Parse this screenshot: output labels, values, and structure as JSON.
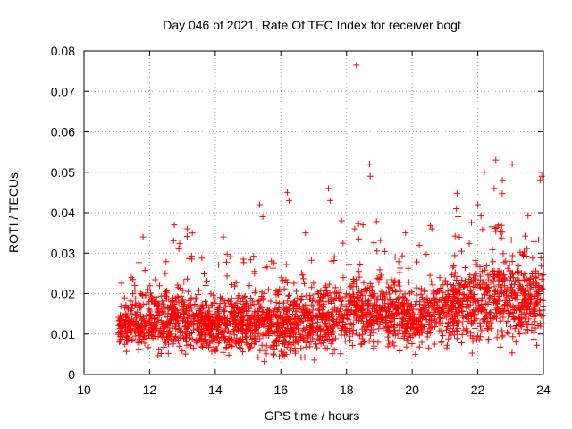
{
  "chart_data": {
    "type": "scatter",
    "title": "Day 046 of 2021, Rate Of TEC Index for receiver bogt",
    "xlabel": "GPS time / hours",
    "ylabel": "ROTI / TECUs",
    "xlim": [
      10,
      24
    ],
    "ylim": [
      0,
      0.08
    ],
    "grid": true,
    "x_ticks": [
      10,
      12,
      14,
      16,
      18,
      20,
      22,
      24
    ],
    "y_ticks": [
      0,
      0.01,
      0.02,
      0.03,
      0.04,
      0.05,
      0.06,
      0.07,
      0.08
    ],
    "x_tick_labels": [
      "10",
      "12",
      "14",
      "16",
      "18",
      "20",
      "22",
      "24"
    ],
    "y_tick_labels": [
      "0",
      "0.01",
      "0.02",
      "0.03",
      "0.04",
      "0.05",
      "0.06",
      "0.07",
      "0.08"
    ],
    "marker": "+",
    "marker_color": "#ff0000",
    "data_x_range": [
      11.05,
      24.0
    ],
    "noise_seed": 46,
    "points_per_hour": 220,
    "envelope": [
      {
        "x": 11.0,
        "base": 0.012,
        "spread": 0.008
      },
      {
        "x": 12.0,
        "base": 0.013,
        "spread": 0.011
      },
      {
        "x": 13.0,
        "base": 0.014,
        "spread": 0.012
      },
      {
        "x": 14.0,
        "base": 0.012,
        "spread": 0.009
      },
      {
        "x": 15.0,
        "base": 0.013,
        "spread": 0.01
      },
      {
        "x": 16.0,
        "base": 0.012,
        "spread": 0.01
      },
      {
        "x": 17.0,
        "base": 0.013,
        "spread": 0.011
      },
      {
        "x": 18.0,
        "base": 0.015,
        "spread": 0.011
      },
      {
        "x": 19.0,
        "base": 0.016,
        "spread": 0.011
      },
      {
        "x": 20.0,
        "base": 0.014,
        "spread": 0.01
      },
      {
        "x": 21.0,
        "base": 0.016,
        "spread": 0.012
      },
      {
        "x": 22.0,
        "base": 0.018,
        "spread": 0.014
      },
      {
        "x": 23.0,
        "base": 0.019,
        "spread": 0.015
      },
      {
        "x": 24.0,
        "base": 0.017,
        "spread": 0.013
      }
    ],
    "highlight_points": [
      {
        "x": 18.3,
        "y": 0.0765
      },
      {
        "x": 18.7,
        "y": 0.052
      },
      {
        "x": 18.72,
        "y": 0.049
      },
      {
        "x": 17.45,
        "y": 0.046
      },
      {
        "x": 17.5,
        "y": 0.043
      },
      {
        "x": 16.2,
        "y": 0.045
      },
      {
        "x": 16.25,
        "y": 0.043
      },
      {
        "x": 15.35,
        "y": 0.042
      },
      {
        "x": 15.45,
        "y": 0.039
      },
      {
        "x": 22.55,
        "y": 0.053
      },
      {
        "x": 22.2,
        "y": 0.05
      },
      {
        "x": 23.05,
        "y": 0.052
      },
      {
        "x": 23.95,
        "y": 0.049
      },
      {
        "x": 23.9,
        "y": 0.048
      },
      {
        "x": 22.75,
        "y": 0.048
      },
      {
        "x": 22.5,
        "y": 0.046
      },
      {
        "x": 12.75,
        "y": 0.037
      },
      {
        "x": 13.15,
        "y": 0.036
      },
      {
        "x": 13.3,
        "y": 0.035
      },
      {
        "x": 11.8,
        "y": 0.034
      },
      {
        "x": 14.25,
        "y": 0.034
      },
      {
        "x": 17.85,
        "y": 0.038
      },
      {
        "x": 18.25,
        "y": 0.036
      },
      {
        "x": 18.5,
        "y": 0.037
      },
      {
        "x": 21.35,
        "y": 0.041
      },
      {
        "x": 21.4,
        "y": 0.039
      },
      {
        "x": 20.6,
        "y": 0.036
      },
      {
        "x": 16.75,
        "y": 0.035
      },
      {
        "x": 19.8,
        "y": 0.035
      },
      {
        "x": 22.0,
        "y": 0.042
      }
    ]
  }
}
